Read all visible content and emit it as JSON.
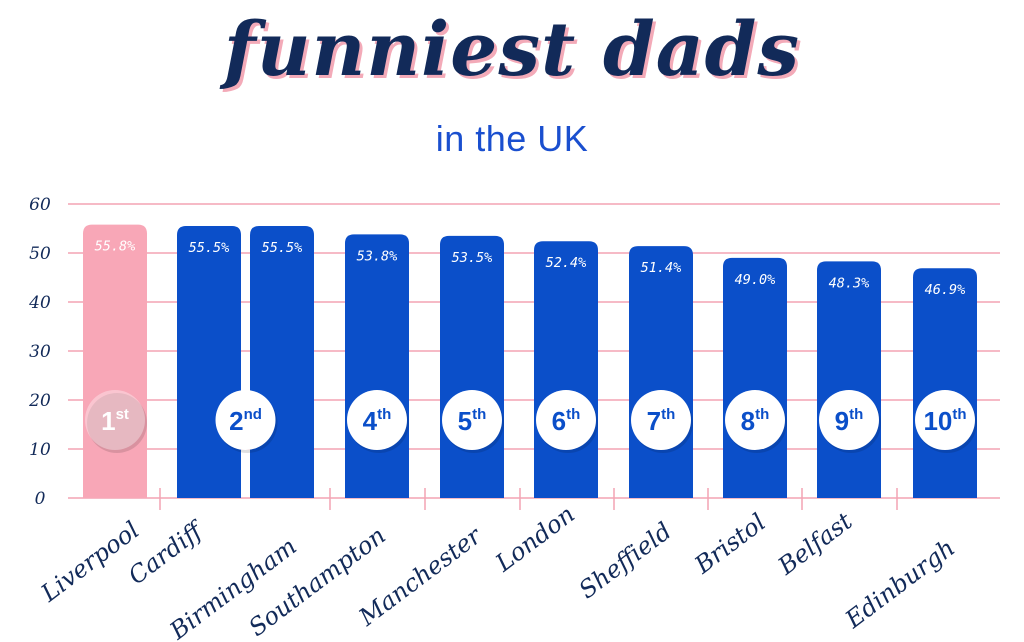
{
  "title": "funniest dads",
  "subtitle": "in the UK",
  "colors": {
    "highlight_bar": "#f8a7b7",
    "bar": "#0b4fc9",
    "grid": "#f3a3b3",
    "text_dark": "#122a59",
    "badge": "#ffffff"
  },
  "chart_data": {
    "type": "bar",
    "title": "funniest dads",
    "subtitle": "in the UK",
    "xlabel": "",
    "ylabel": "",
    "ylim": [
      0,
      60
    ],
    "yticks": [
      0,
      10,
      20,
      30,
      40,
      50,
      60
    ],
    "grid": true,
    "categories": [
      "Liverpool",
      "Cardiff",
      "Birmingham",
      "Southampton",
      "Manchester",
      "London",
      "Sheffield",
      "Bristol",
      "Belfast",
      "Edinburgh"
    ],
    "values": [
      55.8,
      55.5,
      55.5,
      53.8,
      53.5,
      52.4,
      51.4,
      49.0,
      48.3,
      46.9
    ],
    "value_labels": [
      "55.8%",
      "55.5%",
      "55.5%",
      "53.8%",
      "53.5%",
      "52.4%",
      "51.4%",
      "49.0%",
      "48.3%",
      "46.9%"
    ],
    "rank_badges": [
      {
        "num": "1",
        "suffix": "st"
      },
      {
        "num": "2",
        "suffix": "nd"
      },
      {
        "num": "4",
        "suffix": "th"
      },
      {
        "num": "5",
        "suffix": "th"
      },
      {
        "num": "6",
        "suffix": "th"
      },
      {
        "num": "7",
        "suffix": "th"
      },
      {
        "num": "8",
        "suffix": "th"
      },
      {
        "num": "9",
        "suffix": "th"
      },
      {
        "num": "10",
        "suffix": "th"
      }
    ],
    "highlight_category": "Liverpool"
  }
}
